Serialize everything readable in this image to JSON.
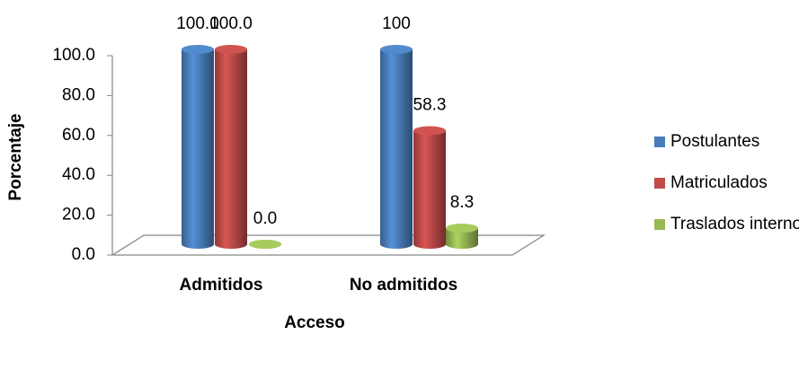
{
  "chart_data": {
    "type": "cylinder-bar",
    "x_label": "Acceso",
    "y_label": "Porcentaje",
    "categories": [
      "Admitidos",
      "No admitidos"
    ],
    "series": [
      {
        "name": "Postulantes",
        "color": "#4a7ebb",
        "values": [
          100,
          100
        ],
        "value_labels": [
          "100.0",
          "100"
        ]
      },
      {
        "name": "Matriculados",
        "color": "#be4b48",
        "values": [
          100,
          58.3
        ],
        "value_labels": [
          "100.0",
          "58.3"
        ]
      },
      {
        "name": "Traslados internos",
        "color": "#98b954",
        "values": [
          0,
          8.3
        ],
        "value_labels": [
          "0.0",
          "8.3"
        ]
      }
    ],
    "ylim": [
      0,
      100
    ],
    "yticks": [
      {
        "value": 0,
        "label": "0.0"
      },
      {
        "value": 20,
        "label": "20.0"
      },
      {
        "value": 40,
        "label": "40.0"
      },
      {
        "value": 60,
        "label": "60.0"
      },
      {
        "value": 80,
        "label": "80.0"
      },
      {
        "value": 100,
        "label": "100.0"
      }
    ],
    "legend": "right"
  }
}
